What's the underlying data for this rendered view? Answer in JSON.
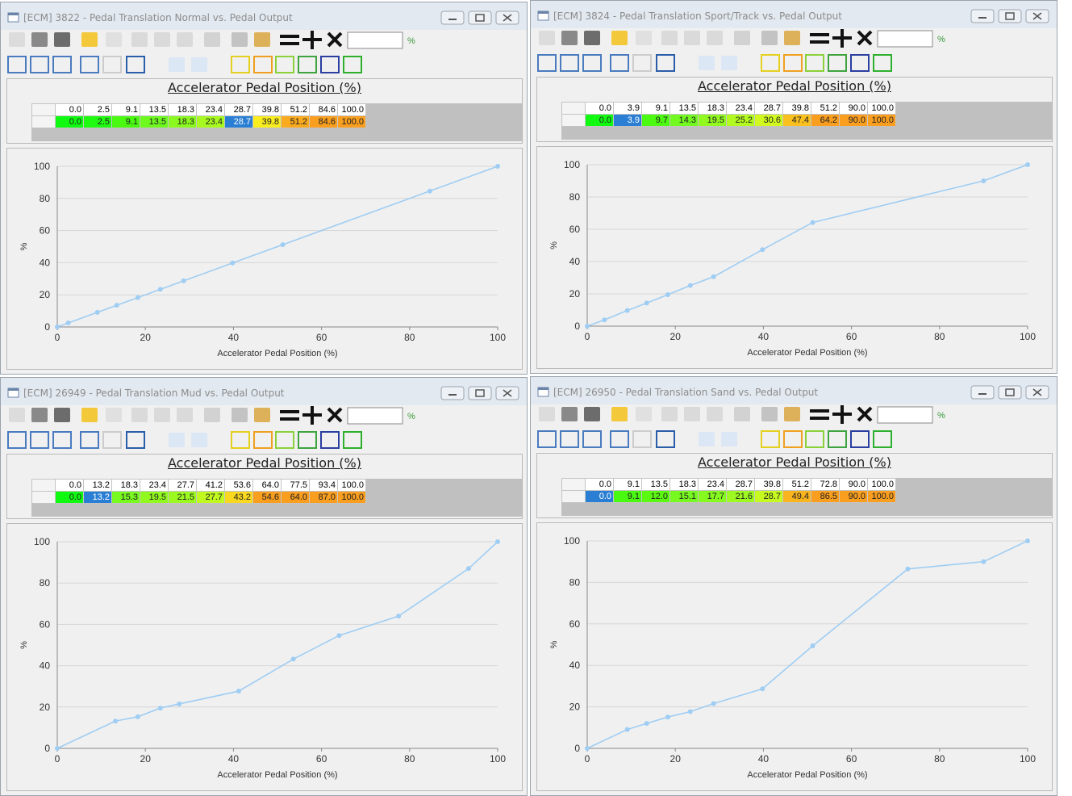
{
  "windows": [
    {
      "title": "[ECM] 3822 - Pedal Translation Normal vs. Pedal Output",
      "unit": "%",
      "table_title": "Accelerator Pedal Position (%)",
      "selected_cell": 6,
      "chart_data": {
        "type": "line",
        "x_label": "Accelerator Pedal Position (%)",
        "y_label": "%",
        "color": "#9fcdf3",
        "grid": true,
        "x": [
          0,
          2.5,
          9.1,
          13.5,
          18.3,
          23.4,
          28.7,
          39.8,
          51.2,
          84.6,
          100
        ],
        "x_labels": [
          "0.0",
          "2.5",
          "9.1",
          "13.5",
          "18.3",
          "23.4",
          "28.7",
          "39.8",
          "51.2",
          "84.6",
          "100.0"
        ],
        "values": [
          0,
          2.5,
          9.1,
          13.5,
          18.3,
          23.4,
          28.7,
          39.8,
          51.2,
          84.6,
          100
        ],
        "value_labels": [
          "0.0",
          "2.5",
          "9.1",
          "13.5",
          "18.3",
          "23.4",
          "28.7",
          "39.8",
          "51.2",
          "84.6",
          "100.0"
        ],
        "xlim": [
          0,
          100
        ],
        "ylim": [
          0,
          100
        ],
        "xticks": [
          0,
          20,
          40,
          60,
          80,
          100
        ],
        "yticks": [
          0,
          20,
          40,
          60,
          80,
          100
        ]
      }
    },
    {
      "title": "[ECM] 3824 - Pedal Translation Sport/Track vs. Pedal Output",
      "unit": "%",
      "table_title": "Accelerator Pedal Position (%)",
      "selected_cell": 1,
      "chart_data": {
        "type": "line",
        "x_label": "Accelerator Pedal Position (%)",
        "y_label": "%",
        "color": "#9fcdf3",
        "grid": true,
        "x": [
          0,
          3.9,
          9.1,
          13.5,
          18.3,
          23.4,
          28.7,
          39.8,
          51.2,
          90,
          100
        ],
        "x_labels": [
          "0.0",
          "3.9",
          "9.1",
          "13.5",
          "18.3",
          "23.4",
          "28.7",
          "39.8",
          "51.2",
          "90.0",
          "100.0"
        ],
        "values": [
          0,
          3.9,
          9.7,
          14.3,
          19.5,
          25.2,
          30.6,
          47.4,
          64.2,
          90,
          100
        ],
        "value_labels": [
          "0.0",
          "3.9",
          "9.7",
          "14.3",
          "19.5",
          "25.2",
          "30.6",
          "47.4",
          "64.2",
          "90.0",
          "100.0"
        ],
        "xlim": [
          0,
          100
        ],
        "ylim": [
          0,
          100
        ],
        "xticks": [
          0,
          20,
          40,
          60,
          80,
          100
        ],
        "yticks": [
          0,
          20,
          40,
          60,
          80,
          100
        ]
      }
    },
    {
      "title": "[ECM] 26949 - Pedal Translation Mud vs. Pedal Output",
      "unit": "%",
      "table_title": "Accelerator Pedal Position (%)",
      "selected_cell": 1,
      "chart_data": {
        "type": "line",
        "x_label": "Accelerator Pedal Position (%)",
        "y_label": "%",
        "color": "#9fcdf3",
        "grid": true,
        "x": [
          0,
          13.2,
          18.3,
          23.4,
          27.7,
          41.2,
          53.6,
          64,
          77.5,
          93.4,
          100
        ],
        "x_labels": [
          "0.0",
          "13.2",
          "18.3",
          "23.4",
          "27.7",
          "41.2",
          "53.6",
          "64.0",
          "77.5",
          "93.4",
          "100.0"
        ],
        "values": [
          0,
          13.2,
          15.3,
          19.5,
          21.5,
          27.7,
          43.2,
          54.6,
          64,
          87,
          100
        ],
        "value_labels": [
          "0.0",
          "13.2",
          "15.3",
          "19.5",
          "21.5",
          "27.7",
          "43.2",
          "54.6",
          "64.0",
          "87.0",
          "100.0"
        ],
        "xlim": [
          0,
          100
        ],
        "ylim": [
          0,
          100
        ],
        "xticks": [
          0,
          20,
          40,
          60,
          80,
          100
        ],
        "yticks": [
          0,
          20,
          40,
          60,
          80,
          100
        ]
      }
    },
    {
      "title": "[ECM] 26950 - Pedal Translation Sand vs. Pedal Output",
      "unit": "%",
      "table_title": "Accelerator Pedal Position (%)",
      "selected_cell": 0,
      "chart_data": {
        "type": "line",
        "x_label": "Accelerator Pedal Position (%)",
        "y_label": "%",
        "color": "#9fcdf3",
        "grid": true,
        "x": [
          0,
          9.1,
          13.5,
          18.3,
          23.4,
          28.7,
          39.8,
          51.2,
          72.8,
          90,
          100
        ],
        "x_labels": [
          "0.0",
          "9.1",
          "13.5",
          "18.3",
          "23.4",
          "28.7",
          "39.8",
          "51.2",
          "72.8",
          "90.0",
          "100.0"
        ],
        "values": [
          0,
          9.1,
          12,
          15.1,
          17.7,
          21.6,
          28.7,
          49.4,
          86.5,
          90,
          100
        ],
        "value_labels": [
          "0.0",
          "9.1",
          "12.0",
          "15.1",
          "17.7",
          "21.6",
          "28.7",
          "49.4",
          "86.5",
          "90.0",
          "100.0"
        ],
        "xlim": [
          0,
          100
        ],
        "ylim": [
          0,
          100
        ],
        "xticks": [
          0,
          20,
          40,
          60,
          80,
          100
        ],
        "yticks": [
          0,
          20,
          40,
          60,
          80,
          100
        ]
      }
    }
  ]
}
